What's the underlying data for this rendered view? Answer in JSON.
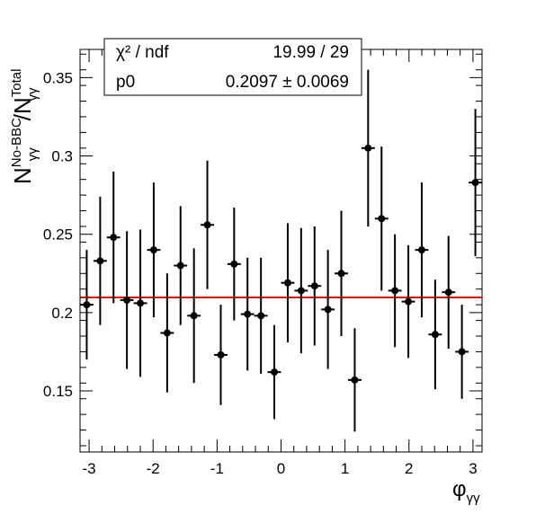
{
  "colors": {
    "points": "#000000",
    "fit_line": "#e00000",
    "frame": "#000000",
    "background": "#ffffff"
  },
  "stats_box": {
    "row1_label": "χ² / ndf",
    "row1_value": "19.99 / 29",
    "row2_label": "p0",
    "row2_value": "0.2097 ± 0.0069"
  },
  "axes": {
    "y_title_main": "N",
    "y_title_num_sup": "No-BBC",
    "y_title_num_sub": "γγ",
    "y_title_sep": "/N",
    "y_title_den_sup": "Total",
    "y_title_den_sub": "γγ",
    "x_title_main": "φ",
    "x_title_sub": "γγ"
  },
  "chart_data": {
    "type": "scatter",
    "title": "",
    "xlabel": "φγγ",
    "ylabel": "N_γγ^No-BBC / N_γγ^Total",
    "xlim": [
      -3.1416,
      3.1416
    ],
    "ylim": [
      0.111,
      0.368
    ],
    "x_ticks": [
      -3,
      -2,
      -1,
      0,
      1,
      2,
      3
    ],
    "x_tick_labels": [
      "-3",
      "-2",
      "-1",
      "0",
      "1",
      "2",
      "3"
    ],
    "y_ticks": [
      0.15,
      0.2,
      0.25,
      0.3,
      0.35
    ],
    "y_tick_labels": [
      "0.15",
      "0.2",
      "0.25",
      "0.3",
      "0.35"
    ],
    "grid": false,
    "legend": "none",
    "fit_constant": 0.2097,
    "fit_constant_error": 0.0069,
    "points": [
      {
        "x": -3.037,
        "y": 0.205,
        "err": 0.035
      },
      {
        "x": -2.827,
        "y": 0.233,
        "err": 0.041
      },
      {
        "x": -2.618,
        "y": 0.248,
        "err": 0.042
      },
      {
        "x": -2.409,
        "y": 0.208,
        "err": 0.044
      },
      {
        "x": -2.199,
        "y": 0.206,
        "err": 0.047
      },
      {
        "x": -1.99,
        "y": 0.24,
        "err": 0.043
      },
      {
        "x": -1.78,
        "y": 0.187,
        "err": 0.038
      },
      {
        "x": -1.571,
        "y": 0.23,
        "err": 0.038
      },
      {
        "x": -1.361,
        "y": 0.198,
        "err": 0.043
      },
      {
        "x": -1.152,
        "y": 0.256,
        "err": 0.041
      },
      {
        "x": -0.942,
        "y": 0.173,
        "err": 0.032
      },
      {
        "x": -0.733,
        "y": 0.231,
        "err": 0.036
      },
      {
        "x": -0.524,
        "y": 0.199,
        "err": 0.036
      },
      {
        "x": -0.314,
        "y": 0.198,
        "err": 0.037
      },
      {
        "x": -0.105,
        "y": 0.162,
        "err": 0.03
      },
      {
        "x": 0.105,
        "y": 0.219,
        "err": 0.038
      },
      {
        "x": 0.314,
        "y": 0.214,
        "err": 0.04
      },
      {
        "x": 0.524,
        "y": 0.217,
        "err": 0.038
      },
      {
        "x": 0.733,
        "y": 0.202,
        "err": 0.038
      },
      {
        "x": 0.942,
        "y": 0.225,
        "err": 0.04
      },
      {
        "x": 1.152,
        "y": 0.157,
        "err": 0.033
      },
      {
        "x": 1.361,
        "y": 0.305,
        "err": 0.05
      },
      {
        "x": 1.571,
        "y": 0.26,
        "err": 0.046
      },
      {
        "x": 1.78,
        "y": 0.214,
        "err": 0.036
      },
      {
        "x": 1.99,
        "y": 0.207,
        "err": 0.036
      },
      {
        "x": 2.199,
        "y": 0.24,
        "err": 0.043
      },
      {
        "x": 2.409,
        "y": 0.186,
        "err": 0.035
      },
      {
        "x": 2.618,
        "y": 0.213,
        "err": 0.036
      },
      {
        "x": 2.827,
        "y": 0.175,
        "err": 0.03
      },
      {
        "x": 3.037,
        "y": 0.283,
        "err": 0.047
      }
    ]
  }
}
